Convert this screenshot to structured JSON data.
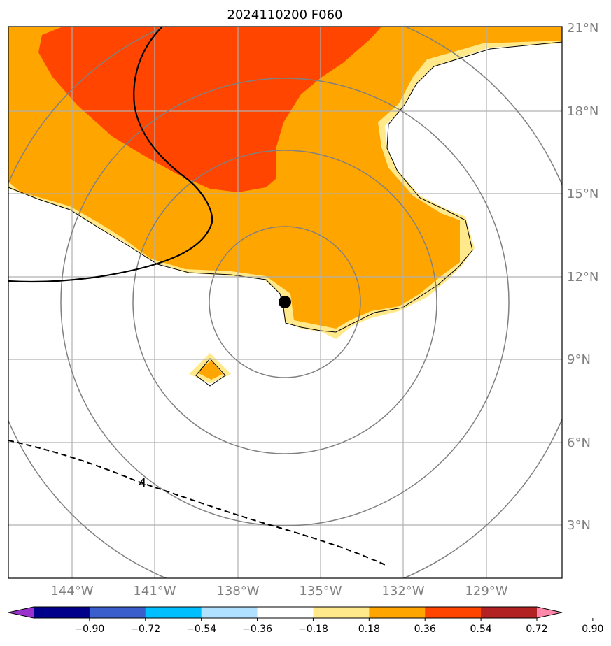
{
  "title": "2024110200 F060",
  "colors": {
    "shade_036_054": "#ffa500",
    "shade_018_036": "#ffe98a",
    "shade_054_072": "#ff4500",
    "range_ring": "#808080",
    "gridline": "#b0b0b0",
    "storm_center": "#000000"
  },
  "axes": {
    "lon_labels": [
      "144°W",
      "141°W",
      "138°W",
      "135°W",
      "132°W",
      "129°W"
    ],
    "lat_labels": [
      "21°N",
      "18°N",
      "15°N",
      "12°N",
      "9°N",
      "6°N",
      "3°N"
    ]
  },
  "colorbar": {
    "colors": [
      "#9932cc",
      "#00008b",
      "#3a5fcd",
      "#00bfff",
      "#b0e2ff",
      "#ffffff",
      "#ffe98a",
      "#ffa500",
      "#ff4500",
      "#b22222",
      "#ff88aa"
    ],
    "tick_labels": [
      "−0.90",
      "−0.72",
      "−0.54",
      "−0.36",
      "−0.18",
      "0.18",
      "0.36",
      "0.54",
      "0.72",
      "0.90"
    ]
  },
  "contour": {
    "dashed_label": "4"
  },
  "storm_center": {
    "lon": -136.3,
    "lat": 11.1
  }
}
